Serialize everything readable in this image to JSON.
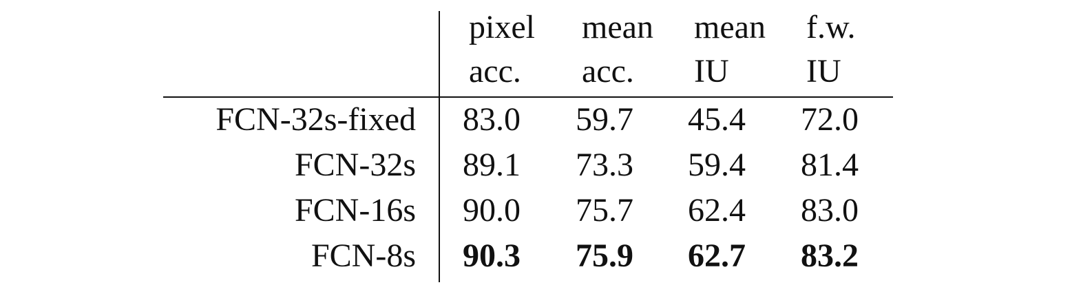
{
  "table": {
    "header": [
      {
        "line1": "pixel",
        "line2": "acc."
      },
      {
        "line1": "mean",
        "line2": "acc."
      },
      {
        "line1": "mean",
        "line2": "IU"
      },
      {
        "line1": "f.w.",
        "line2": "IU"
      }
    ],
    "rows": [
      {
        "label": "FCN-32s-fixed",
        "values": [
          "83.0",
          "59.7",
          "45.4",
          "72.0"
        ],
        "bold": false
      },
      {
        "label": "FCN-32s",
        "values": [
          "89.1",
          "73.3",
          "59.4",
          "81.4"
        ],
        "bold": false
      },
      {
        "label": "FCN-16s",
        "values": [
          "90.0",
          "75.7",
          "62.4",
          "83.0"
        ],
        "bold": false
      },
      {
        "label": "FCN-8s",
        "values": [
          "90.3",
          "75.9",
          "62.7",
          "83.2"
        ],
        "bold": true
      }
    ]
  }
}
